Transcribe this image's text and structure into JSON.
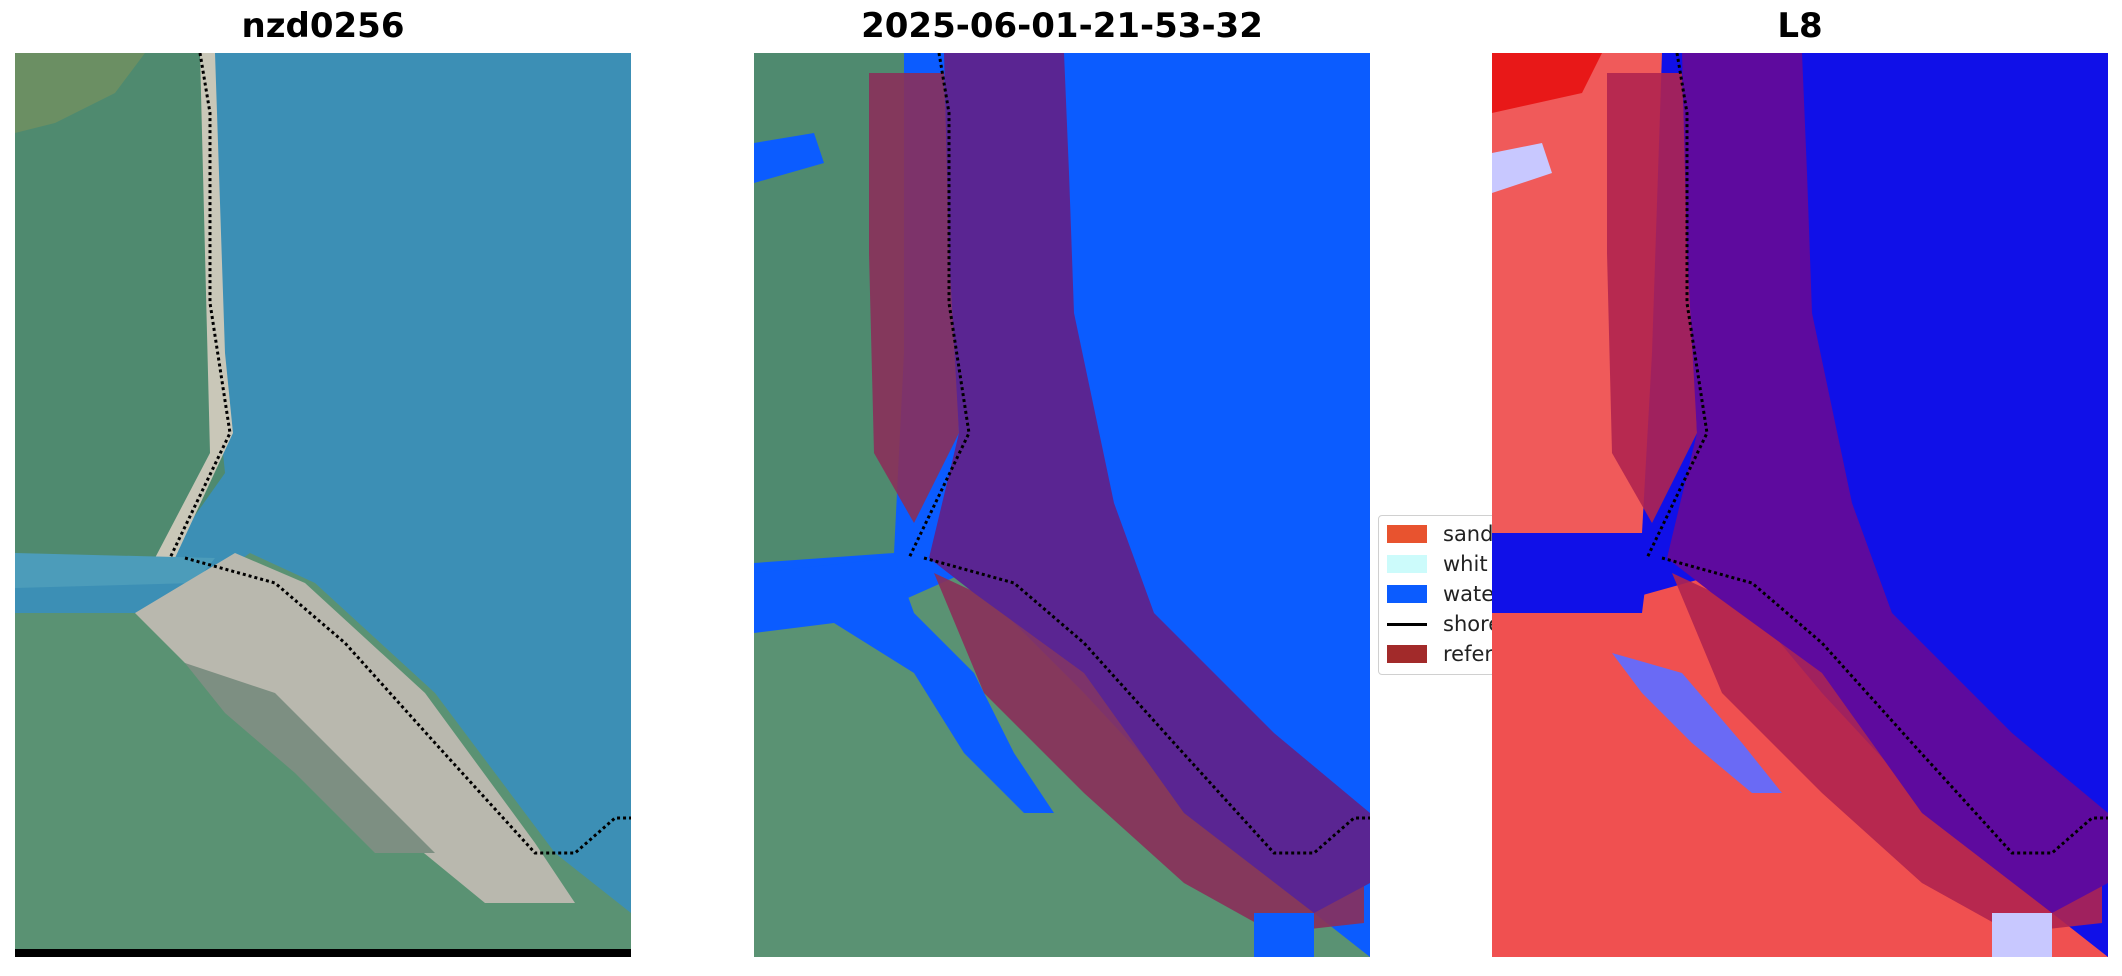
{
  "panels": {
    "left_title": "nzd0256",
    "middle_title": "2025-06-01-21-53-32",
    "right_title": "L8"
  },
  "legend": {
    "items": [
      {
        "label": "sand",
        "color": "#e8532f"
      },
      {
        "label": "whit",
        "color": "#ccfbfb"
      },
      {
        "label": "wate",
        "color": "#0b5cff"
      },
      {
        "label": "shore",
        "color": "#000000"
      },
      {
        "label": "refer",
        "color": "#a22a2a"
      }
    ]
  },
  "colors": {
    "sea": "#3b8db3",
    "land": "#4f8a6f",
    "sand_flat": "#b8b7ad",
    "water_class": "#0b5cff",
    "reference_overlay": "#8a1f4a",
    "l8_land": "#f04a4a",
    "l8_water": "#1010e8",
    "l8_overlay": "#5e0a9e"
  }
}
